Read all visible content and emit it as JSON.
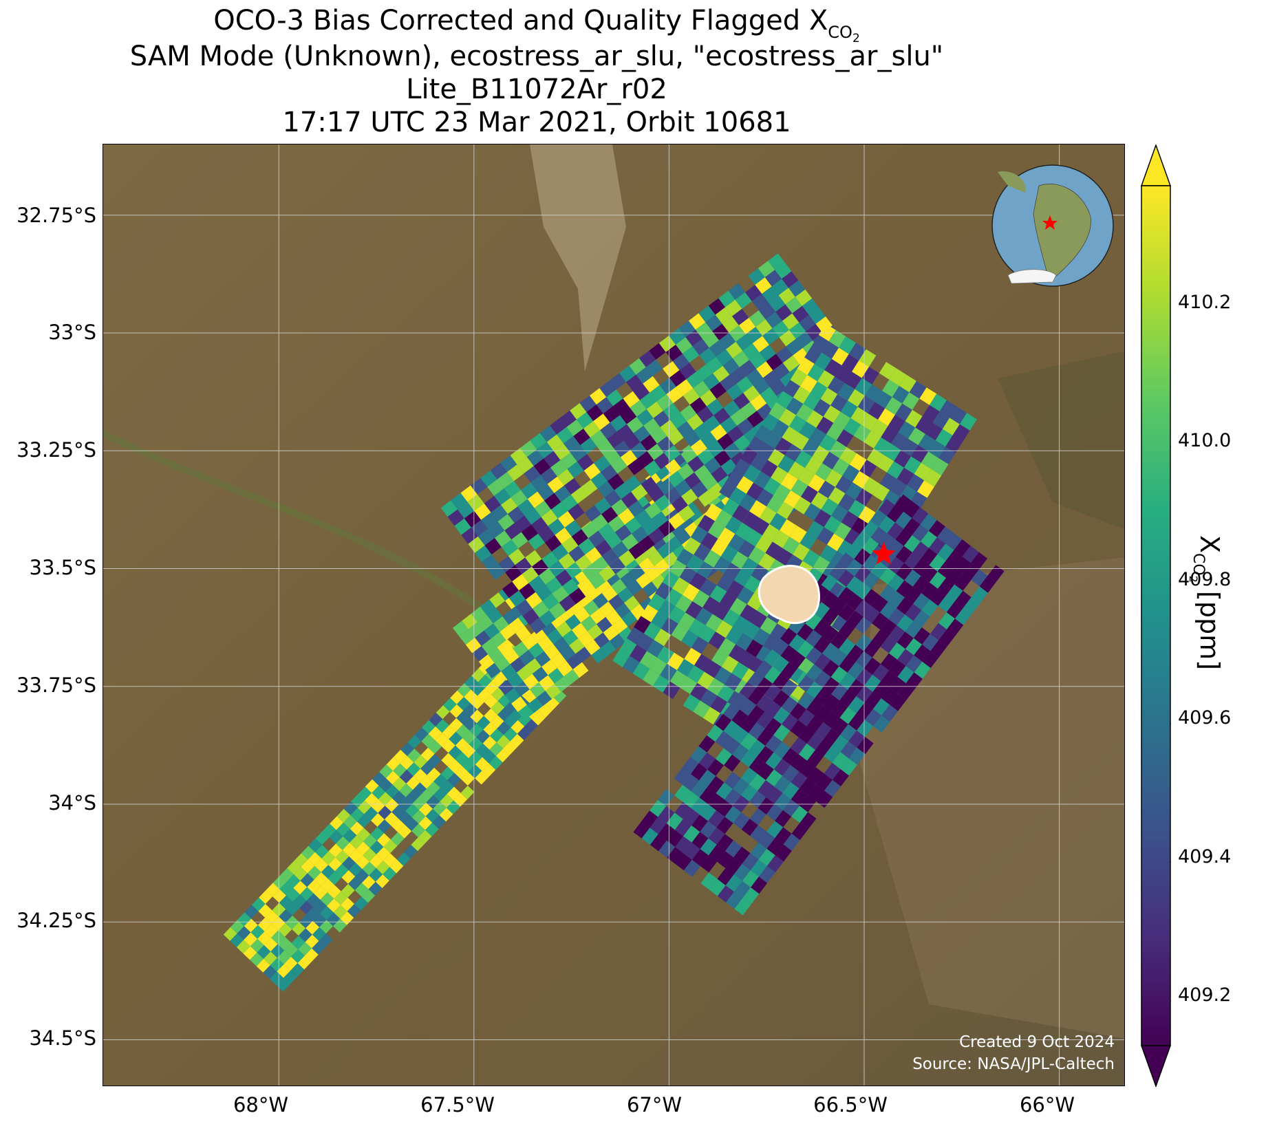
{
  "title": {
    "line1_main": "OCO-3 Bias Corrected and Quality Flagged X",
    "line1_sub": "CO",
    "line1_sub2": "2",
    "line2": "SAM Mode (Unknown), ecostress_ar_slu, \"ecostress_ar_slu\"",
    "line3": "Lite_B11072Ar_r02",
    "line4": "17:17 UTC 23 Mar 2021, Orbit 10681"
  },
  "axes": {
    "lat_ticks": [
      "32.75°S",
      "33°S",
      "33.25°S",
      "33.5°S",
      "33.75°S",
      "34°S",
      "34.25°S",
      "34.5°S"
    ],
    "lon_ticks": [
      "68°W",
      "67.5°W",
      "67°W",
      "66.5°W",
      "66°W"
    ]
  },
  "colorbar": {
    "ticks": [
      "410.2",
      "410.0",
      "409.8",
      "409.6",
      "409.4",
      "409.2"
    ],
    "label_main": "X",
    "label_sub": "CO",
    "label_sub2": "2",
    "label_unit": " [ppm]",
    "colormap": [
      "#440154",
      "#472d7b",
      "#3b528b",
      "#2c728e",
      "#21918c",
      "#28ae80",
      "#5ec962",
      "#addc30",
      "#fde725"
    ]
  },
  "credits": {
    "created": "Created 9 Oct 2024",
    "source": "Source: NASA/JPL-Caltech"
  },
  "target_marker": {
    "lon": -66.45,
    "lat": -33.47,
    "color": "#ff0000"
  },
  "map_colors": {
    "land": "#7a6540",
    "grid": "#d8d8d8"
  }
}
